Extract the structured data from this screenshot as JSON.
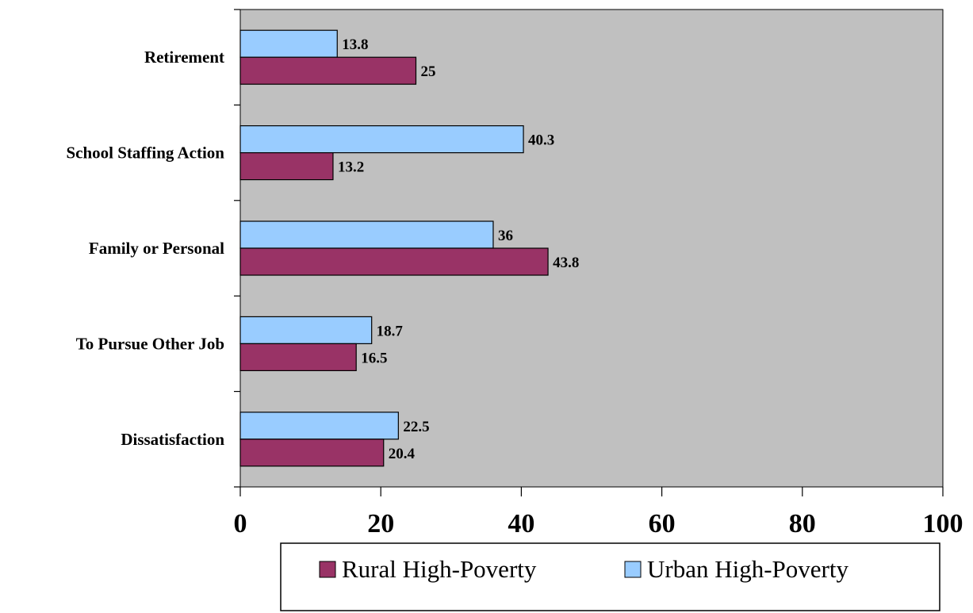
{
  "chart_data": {
    "type": "bar",
    "orientation": "horizontal",
    "title": "",
    "xlabel": "",
    "ylabel": "",
    "categories": [
      "Retirement",
      "School Staffing Action",
      "Family or Personal",
      "To Pursue Other Job",
      "Dissatisfaction"
    ],
    "series": [
      {
        "name": "Urban High-Poverty",
        "values": [
          13.8,
          40.3,
          36,
          18.7,
          22.5
        ],
        "color": "#99ccff"
      },
      {
        "name": "Rural High-Poverty",
        "values": [
          25,
          13.2,
          43.8,
          16.5,
          20.4
        ],
        "color": "#993366"
      }
    ],
    "xlim": [
      0,
      100
    ],
    "xticks": [
      "0",
      "20",
      "40",
      "60",
      "80",
      "100"
    ],
    "data_labels": [
      [
        "13.8",
        "40.3",
        "36",
        "18.7",
        "22.5"
      ],
      [
        "25",
        "13.2",
        "43.8",
        "16.5",
        "20.4"
      ]
    ],
    "plot_background": "#c0c0c0",
    "grid": false,
    "legend": {
      "position": "bottom",
      "entries": [
        "Rural High-Poverty",
        "Urban High-Poverty"
      ],
      "colors": [
        "#993366",
        "#99ccff"
      ]
    }
  }
}
